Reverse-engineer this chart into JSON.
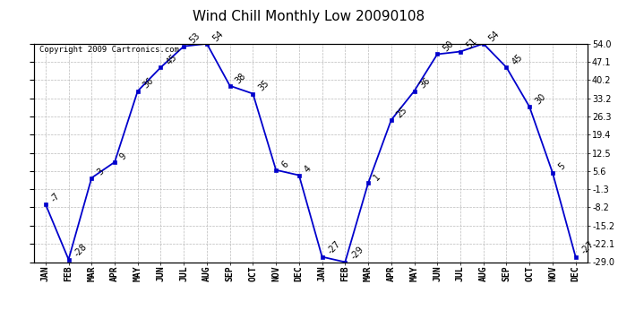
{
  "title": "Wind Chill Monthly Low 20090108",
  "copyright": "Copyright 2009 Cartronics.com",
  "months": [
    "JAN",
    "FEB",
    "MAR",
    "APR",
    "MAY",
    "JUN",
    "JUL",
    "AUG",
    "SEP",
    "OCT",
    "NOV",
    "DEC",
    "JAN",
    "FEB",
    "MAR",
    "APR",
    "MAY",
    "JUN",
    "JUL",
    "AUG",
    "SEP",
    "OCT",
    "NOV",
    "DEC"
  ],
  "values": [
    -7,
    -28,
    3,
    9,
    36,
    45,
    53,
    54,
    38,
    35,
    6,
    4,
    -27,
    -29,
    1,
    25,
    36,
    50,
    51,
    54,
    45,
    30,
    5,
    -27
  ],
  "labels": [
    "-7",
    "-28",
    "3",
    "9",
    "36",
    "45",
    "53",
    "54",
    "38",
    "35",
    "6",
    "4",
    "-27",
    "-29",
    "1",
    "25",
    "36",
    "50",
    "51",
    "54",
    "45",
    "30",
    "5",
    "-27"
  ],
  "yticks": [
    54.0,
    47.1,
    40.2,
    33.2,
    26.3,
    19.4,
    12.5,
    5.6,
    -1.3,
    -8.2,
    -15.2,
    -22.1,
    -29.0
  ],
  "ylim": [
    -29.0,
    54.0
  ],
  "line_color": "#0000CC",
  "marker_color": "#0000CC",
  "bg_color": "#FFFFFF",
  "grid_color": "#BBBBBB",
  "title_fontsize": 11,
  "label_fontsize": 7,
  "tick_fontsize": 7,
  "copyright_fontsize": 6.5
}
